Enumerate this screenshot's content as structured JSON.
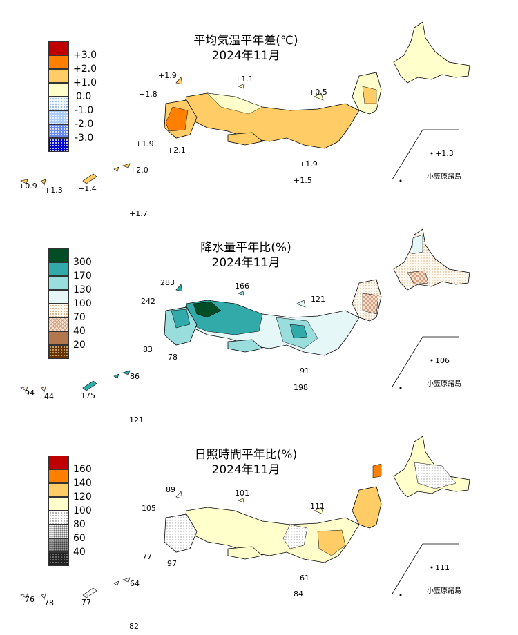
{
  "panels": [
    {
      "title_line1": "平均気温平年差(℃)",
      "title_line2": "2024年11月",
      "legend": [
        {
          "label": "+3.0",
          "color": "#c00000"
        },
        {
          "label": "+2.0",
          "color": "#ff8000"
        },
        {
          "label": "+1.0",
          "color": "#ffcc66"
        },
        {
          "label": "0.0",
          "color": "#ffffcc"
        },
        {
          "label": "-1.0",
          "color": "#cce6ff"
        },
        {
          "label": "-2.0",
          "color": "#6699ff"
        },
        {
          "label": "-3.0",
          "color": "#0000cc"
        }
      ],
      "station_values": [
        "+1.9",
        "+1.1",
        "+1.8",
        "+0.5",
        "+1.9",
        "+2.1",
        "+1.9",
        "+1.5",
        "+2.0",
        "+0.9",
        "+1.3",
        "+1.4",
        "+1.7",
        "+1.3"
      ],
      "ogasawara_label": "小笠原諸島"
    },
    {
      "title_line1": "降水量平年比(%)",
      "title_line2": "2024年11月",
      "legend": [
        {
          "label": "300",
          "color": "#004d26"
        },
        {
          "label": "170",
          "color": "#33aaaa"
        },
        {
          "label": "130",
          "color": "#99dddd"
        },
        {
          "label": "100",
          "color": "#e6f7f7"
        },
        {
          "label": "70",
          "color": "#fff5e6"
        },
        {
          "label": "40",
          "color": "#e6c8b4"
        },
        {
          "label": "20",
          "color": "#b3774d"
        },
        {
          "label": "",
          "color": "#663300"
        }
      ],
      "station_values": [
        "283",
        "166",
        "242",
        "121",
        "83",
        "78",
        "91",
        "198",
        "86",
        "94",
        "44",
        "175",
        "121",
        "106"
      ],
      "ogasawara_label": "小笠原諸島"
    },
    {
      "title_line1": "日照時間平年比(%)",
      "title_line2": "2024年11月",
      "legend": [
        {
          "label": "160",
          "color": "#c00000"
        },
        {
          "label": "140",
          "color": "#ff8000"
        },
        {
          "label": "120",
          "color": "#ffcc66"
        },
        {
          "label": "100",
          "color": "#ffffcc"
        },
        {
          "label": "80",
          "color": "#f0f0f0"
        },
        {
          "label": "60",
          "color": "#bbbbbb"
        },
        {
          "label": "40",
          "color": "#777777"
        },
        {
          "label": "",
          "color": "#222222"
        }
      ],
      "station_values": [
        "89",
        "101",
        "105",
        "111",
        "77",
        "97",
        "61",
        "84",
        "64",
        "76",
        "78",
        "77",
        "82",
        "111"
      ],
      "ogasawara_label": "小笠原諸島"
    }
  ]
}
